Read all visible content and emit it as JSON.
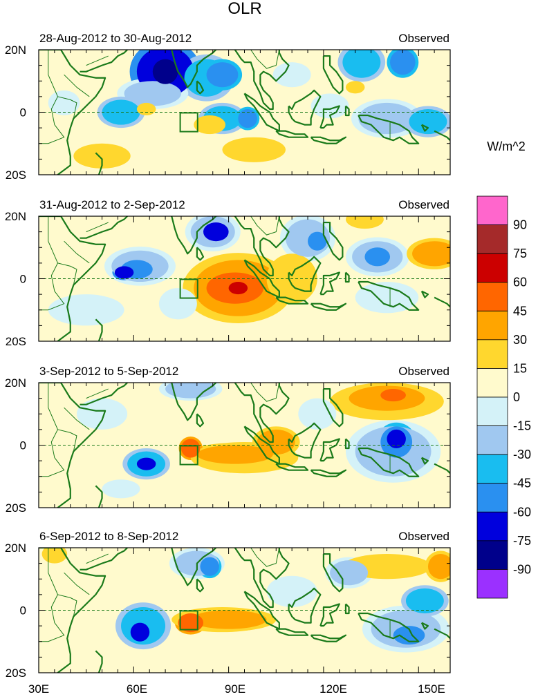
{
  "title": "OLR",
  "units": "W/m^2",
  "panels": [
    {
      "date_range": "28-Aug-2012 to 30-Aug-2012",
      "label": "Observed",
      "blobs": [
        {
          "lon": 70,
          "lat": 13,
          "rx": 9,
          "ry": 8,
          "v": -75
        },
        {
          "lon": 70,
          "lat": 13,
          "rx": 4,
          "ry": 4,
          "v": -90
        },
        {
          "lon": 83,
          "lat": 11,
          "rx": 7,
          "ry": 6,
          "v": -45
        },
        {
          "lon": 88,
          "lat": 12,
          "rx": 5,
          "ry": 4,
          "v": -60
        },
        {
          "lon": 66,
          "lat": 6,
          "rx": 9,
          "ry": 4,
          "v": -30
        },
        {
          "lon": 56,
          "lat": 0,
          "rx": 6,
          "ry": 4,
          "v": -45
        },
        {
          "lon": 88,
          "lat": -2,
          "rx": 6,
          "ry": 4,
          "v": -45
        },
        {
          "lon": 96,
          "lat": -2,
          "rx": 3,
          "ry": 3,
          "v": -60
        },
        {
          "lon": 64,
          "lat": 1,
          "rx": 3,
          "ry": 2,
          "v": 15
        },
        {
          "lon": 84,
          "lat": -4,
          "rx": 5,
          "ry": 3,
          "v": 15
        },
        {
          "lon": 98,
          "lat": -12,
          "rx": 10,
          "ry": 4,
          "v": 15
        },
        {
          "lon": 112,
          "lat": -3,
          "rx": 9,
          "ry": 6,
          "v": 0
        },
        {
          "lon": 132,
          "lat": 16,
          "rx": 6,
          "ry": 5,
          "v": -45
        },
        {
          "lon": 145,
          "lat": 16,
          "rx": 4,
          "ry": 4,
          "v": -60
        },
        {
          "lon": 140,
          "lat": -2,
          "rx": 9,
          "ry": 5,
          "v": -30
        },
        {
          "lon": 153,
          "lat": -3,
          "rx": 6,
          "ry": 4,
          "v": -45
        },
        {
          "lon": 122,
          "lat": 2,
          "rx": 6,
          "ry": 4,
          "v": -15
        },
        {
          "lon": 110,
          "lat": 12,
          "rx": 6,
          "ry": 4,
          "v": -15
        },
        {
          "lon": 38,
          "lat": 3,
          "rx": 5,
          "ry": 4,
          "v": -15
        },
        {
          "lon": 130,
          "lat": 8,
          "rx": 3,
          "ry": 2,
          "v": 15
        },
        {
          "lon": 50,
          "lat": -14,
          "rx": 9,
          "ry": 4,
          "v": 15
        }
      ]
    },
    {
      "date_range": "31-Aug-2012 to 2-Sep-2012",
      "label": "Observed",
      "blobs": [
        {
          "lon": 93,
          "lat": -3,
          "rx": 14,
          "ry": 9,
          "v": 30
        },
        {
          "lon": 92,
          "lat": -3,
          "rx": 9,
          "ry": 5,
          "v": 45
        },
        {
          "lon": 93,
          "lat": -3,
          "rx": 3,
          "ry": 2,
          "v": 60
        },
        {
          "lon": 110,
          "lat": 0,
          "rx": 8,
          "ry": 8,
          "v": 15
        },
        {
          "lon": 62,
          "lat": 4,
          "rx": 9,
          "ry": 5,
          "v": -30
        },
        {
          "lon": 61,
          "lat": 3,
          "rx": 5,
          "ry": 3,
          "v": -60
        },
        {
          "lon": 57,
          "lat": 2,
          "rx": 3,
          "ry": 2,
          "v": -75
        },
        {
          "lon": 85,
          "lat": 15,
          "rx": 7,
          "ry": 5,
          "v": -30
        },
        {
          "lon": 86,
          "lat": 15,
          "rx": 4,
          "ry": 3,
          "v": -75
        },
        {
          "lon": 115,
          "lat": 13,
          "rx": 7,
          "ry": 6,
          "v": -30
        },
        {
          "lon": 118,
          "lat": 12,
          "rx": 3,
          "ry": 3,
          "v": -60
        },
        {
          "lon": 137,
          "lat": 7,
          "rx": 8,
          "ry": 5,
          "v": -30
        },
        {
          "lon": 137,
          "lat": 7,
          "rx": 4,
          "ry": 3,
          "v": -60
        },
        {
          "lon": 155,
          "lat": 8,
          "rx": 7,
          "ry": 4,
          "v": 30
        },
        {
          "lon": 133,
          "lat": 19,
          "rx": 6,
          "ry": 3,
          "v": 15
        },
        {
          "lon": 74,
          "lat": -8,
          "rx": 6,
          "ry": 5,
          "v": -15
        },
        {
          "lon": 140,
          "lat": -6,
          "rx": 10,
          "ry": 5,
          "v": -15
        },
        {
          "lon": 45,
          "lat": -10,
          "rx": 12,
          "ry": 5,
          "v": -15
        }
      ]
    },
    {
      "date_range": "3-Sep-2012 to 5-Sep-2012",
      "label": "Observed",
      "blobs": [
        {
          "lon": 95,
          "lat": -4,
          "rx": 17,
          "ry": 5,
          "v": 15
        },
        {
          "lon": 92,
          "lat": -3,
          "rx": 12,
          "ry": 3,
          "v": 30
        },
        {
          "lon": 78,
          "lat": -1,
          "rx": 3,
          "ry": 3,
          "v": 45
        },
        {
          "lon": 105,
          "lat": 1,
          "rx": 6,
          "ry": 4,
          "v": 30
        },
        {
          "lon": 140,
          "lat": 14,
          "rx": 18,
          "ry": 6,
          "v": 15
        },
        {
          "lon": 140,
          "lat": 15,
          "rx": 12,
          "ry": 4,
          "v": 30
        },
        {
          "lon": 142,
          "lat": 16,
          "rx": 4,
          "ry": 2,
          "v": 45
        },
        {
          "lon": 142,
          "lat": -2,
          "rx": 12,
          "ry": 8,
          "v": -30
        },
        {
          "lon": 143,
          "lat": 1,
          "rx": 5,
          "ry": 5,
          "v": -60
        },
        {
          "lon": 143,
          "lat": 2,
          "rx": 3,
          "ry": 3,
          "v": -75
        },
        {
          "lon": 64,
          "lat": -6,
          "rx": 6,
          "ry": 4,
          "v": -45
        },
        {
          "lon": 64,
          "lat": -6,
          "rx": 3,
          "ry": 2,
          "v": -75
        },
        {
          "lon": 78,
          "lat": 18,
          "rx": 8,
          "ry": 3,
          "v": -30
        },
        {
          "lon": 50,
          "lat": 10,
          "rx": 8,
          "ry": 5,
          "v": -15
        },
        {
          "lon": 118,
          "lat": 10,
          "rx": 6,
          "ry": 5,
          "v": -15
        },
        {
          "lon": 56,
          "lat": -14,
          "rx": 6,
          "ry": 3,
          "v": -15
        }
      ]
    },
    {
      "date_range": "6-Sep-2012 to 8-Sep-2012",
      "label": "Observed",
      "blobs": [
        {
          "lon": 88,
          "lat": -3,
          "rx": 16,
          "ry": 4,
          "v": 15
        },
        {
          "lon": 90,
          "lat": -3,
          "rx": 12,
          "ry": 3,
          "v": 30
        },
        {
          "lon": 78,
          "lat": -4,
          "rx": 4,
          "ry": 3,
          "v": 45
        },
        {
          "lon": 140,
          "lat": 14,
          "rx": 14,
          "ry": 4,
          "v": 15
        },
        {
          "lon": 157,
          "lat": 14,
          "rx": 4,
          "ry": 4,
          "v": 30
        },
        {
          "lon": 63,
          "lat": -5,
          "rx": 7,
          "ry": 6,
          "v": -45
        },
        {
          "lon": 62,
          "lat": -7,
          "rx": 3,
          "ry": 3,
          "v": -75
        },
        {
          "lon": 80,
          "lat": 15,
          "rx": 7,
          "ry": 4,
          "v": -30
        },
        {
          "lon": 84,
          "lat": 14,
          "rx": 3,
          "ry": 3,
          "v": -60
        },
        {
          "lon": 146,
          "lat": -6,
          "rx": 11,
          "ry": 6,
          "v": -30
        },
        {
          "lon": 147,
          "lat": -8,
          "rx": 5,
          "ry": 3,
          "v": -60
        },
        {
          "lon": 152,
          "lat": 3,
          "rx": 6,
          "ry": 4,
          "v": -45
        },
        {
          "lon": 128,
          "lat": 12,
          "rx": 6,
          "ry": 4,
          "v": -30
        },
        {
          "lon": 35,
          "lat": 18,
          "rx": 4,
          "ry": 3,
          "v": 15
        },
        {
          "lon": 110,
          "lat": 6,
          "rx": 8,
          "ry": 5,
          "v": -15
        }
      ]
    }
  ],
  "lat_labels": [
    "20N",
    "0",
    "20S"
  ],
  "lon_labels": [
    "30E",
    "60E",
    "90E",
    "120E",
    "150E"
  ],
  "colorbar": {
    "levels": [
      "90",
      "75",
      "60",
      "45",
      "30",
      "15",
      "0",
      "-15",
      "-30",
      "-45",
      "-60",
      "-75",
      "-90"
    ],
    "colors": [
      "#ff66cc",
      "#a52a2a",
      "#cc0000",
      "#ff6600",
      "#ffa500",
      "#ffd72e",
      "#fffacd",
      "#d4f2f8",
      "#a0c8f0",
      "#19bdf0",
      "#2a90f0",
      "#0000dd",
      "#00008b",
      "#9b30ff"
    ]
  },
  "colors": {
    "coast": "#1a7a1a",
    "box": "#1a7a1a",
    "background": "#fffacd"
  }
}
